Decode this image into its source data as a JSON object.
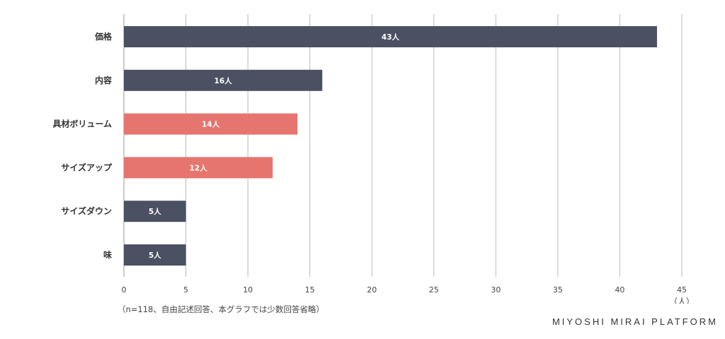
{
  "chart_data": {
    "type": "bar",
    "orientation": "horizontal",
    "categories": [
      "価格",
      "内容",
      "具材ボリューム",
      "サイズアップ",
      "サイズダウン",
      "味"
    ],
    "values": [
      43,
      16,
      14,
      12,
      5,
      5
    ],
    "data_labels": [
      "43人",
      "16人",
      "14人",
      "12人",
      "5人",
      "5人"
    ],
    "bar_colors": [
      "#4b5163",
      "#4b5163",
      "#e5756e",
      "#e5756e",
      "#4b5163",
      "#4b5163"
    ],
    "xlim": [
      0,
      45
    ],
    "xticks": [
      "0",
      "5",
      "10",
      "15",
      "20",
      "25",
      "30",
      "35",
      "40",
      "45"
    ],
    "xunit": "（人）",
    "grid": "vertical",
    "legend": "none"
  },
  "footnote": "（n=118、自由記述回答、本グラフでは少数回答省略）",
  "brand": "MIYOSHI MIRAI PLATFORM",
  "colors": {
    "gridline": "#bbbbbb",
    "axis": "#999999"
  }
}
